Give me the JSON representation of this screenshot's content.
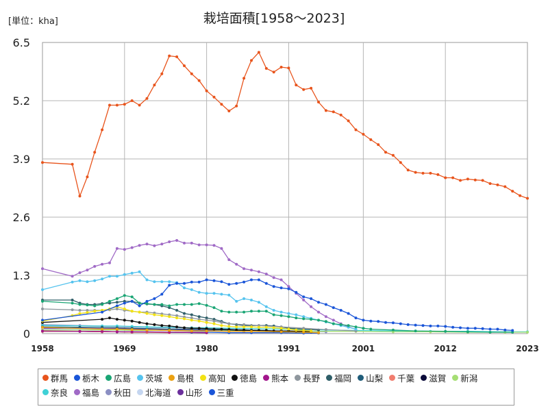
{
  "header": {
    "unit": "[単位：kha]",
    "title": "栽培面積[1958～2023]"
  },
  "chart_data": {
    "type": "line",
    "title": "栽培面積[1958～2023]",
    "unit": "[単位：kha]",
    "xlim": [
      1958,
      2023
    ],
    "ylim": [
      0,
      6.5
    ],
    "x_ticks": [
      1958,
      1969,
      1980,
      1991,
      2001,
      2012,
      2023
    ],
    "y_ticks": [
      0,
      1.3,
      2.6,
      3.9,
      5.2,
      6.5
    ],
    "y_tick_labels": [
      "0",
      "1.3",
      "2.6",
      "3.9",
      "5.2",
      "6.5"
    ],
    "grid": true,
    "legend_position": "bottom",
    "series": [
      {
        "name": "群馬",
        "color": "#e8541c",
        "x": [
          1958,
          1962,
          1963,
          1964,
          1965,
          1966,
          1967,
          1968,
          1969,
          1970,
          1971,
          1972,
          1973,
          1974,
          1975,
          1976,
          1977,
          1978,
          1979,
          1980,
          1981,
          1982,
          1983,
          1984,
          1985,
          1986,
          1987,
          1988,
          1989,
          1990,
          1991,
          1992,
          1993,
          1994,
          1995,
          1996,
          1997,
          1998,
          1999,
          2000,
          2001,
          2002,
          2003,
          2004,
          2005,
          2006,
          2007,
          2008,
          2009,
          2010,
          2011,
          2012,
          2013,
          2014,
          2015,
          2016,
          2017,
          2018,
          2019,
          2020,
          2021,
          2022,
          2023
        ],
        "y": [
          3.82,
          3.78,
          3.07,
          3.5,
          4.05,
          4.55,
          5.1,
          5.1,
          5.12,
          5.2,
          5.1,
          5.25,
          5.55,
          5.8,
          6.2,
          6.18,
          5.98,
          5.8,
          5.65,
          5.42,
          5.28,
          5.12,
          4.97,
          5.08,
          5.7,
          6.1,
          6.28,
          5.92,
          5.84,
          5.95,
          5.93,
          5.55,
          5.45,
          5.48,
          5.17,
          4.98,
          4.95,
          4.88,
          4.75,
          4.55,
          4.45,
          4.33,
          4.22,
          4.05,
          3.98,
          3.82,
          3.65,
          3.6,
          3.58,
          3.58,
          3.55,
          3.48,
          3.48,
          3.42,
          3.45,
          3.43,
          3.42,
          3.35,
          3.32,
          3.28,
          3.18,
          3.08,
          3.02
        ]
      },
      {
        "name": "栃木",
        "color": "#1a55d8",
        "x": [
          1958,
          1966,
          1968,
          1969,
          1970,
          1971,
          1972,
          1973,
          1974,
          1975,
          1976,
          1977,
          1978,
          1979,
          1980,
          1981,
          1982,
          1983,
          1984,
          1985,
          1986,
          1987,
          1988,
          1989,
          1990,
          1991,
          1992,
          1993,
          1994,
          1995,
          1996,
          1997,
          1998,
          1999,
          2000,
          2001,
          2002,
          2003,
          2004,
          2005,
          2006,
          2007,
          2008,
          2009,
          2010,
          2011,
          2012,
          2013,
          2014,
          2015,
          2016,
          2017,
          2018,
          2019,
          2020,
          2021
        ],
        "y": [
          0.3,
          0.48,
          0.62,
          0.68,
          0.72,
          0.62,
          0.72,
          0.78,
          0.88,
          1.08,
          1.12,
          1.12,
          1.15,
          1.15,
          1.2,
          1.18,
          1.16,
          1.1,
          1.12,
          1.15,
          1.2,
          1.2,
          1.12,
          1.05,
          1.02,
          1.0,
          0.92,
          0.82,
          0.78,
          0.7,
          0.65,
          0.58,
          0.52,
          0.45,
          0.35,
          0.3,
          0.28,
          0.27,
          0.25,
          0.24,
          0.22,
          0.2,
          0.19,
          0.18,
          0.17,
          0.17,
          0.16,
          0.14,
          0.13,
          0.12,
          0.12,
          0.11,
          0.1,
          0.1,
          0.08,
          0.07
        ]
      },
      {
        "name": "広島",
        "color": "#1aa574",
        "x": [
          1958,
          1962,
          1963,
          1964,
          1965,
          1966,
          1967,
          1968,
          1969,
          1970,
          1971,
          1972,
          1973,
          1974,
          1975,
          1976,
          1977,
          1978,
          1979,
          1980,
          1981,
          1982,
          1983,
          1984,
          1985,
          1986,
          1987,
          1988,
          1989,
          1990,
          1991,
          1992,
          1993,
          1994,
          1995,
          1996,
          1997,
          1998,
          1999,
          2000,
          2001,
          2002,
          2005,
          2008,
          2012,
          2015,
          2018,
          2021
        ],
        "y": [
          0.72,
          0.68,
          0.65,
          0.64,
          0.62,
          0.65,
          0.72,
          0.78,
          0.85,
          0.82,
          0.68,
          0.67,
          0.65,
          0.65,
          0.62,
          0.65,
          0.65,
          0.65,
          0.67,
          0.63,
          0.58,
          0.5,
          0.48,
          0.48,
          0.48,
          0.5,
          0.5,
          0.5,
          0.42,
          0.4,
          0.38,
          0.35,
          0.33,
          0.32,
          0.3,
          0.27,
          0.22,
          0.2,
          0.18,
          0.15,
          0.12,
          0.1,
          0.08,
          0.06,
          0.05,
          0.04,
          0.03,
          0.03
        ]
      },
      {
        "name": "茨城",
        "color": "#55c3ee",
        "x": [
          1958,
          1962,
          1963,
          1964,
          1965,
          1966,
          1967,
          1968,
          1969,
          1970,
          1971,
          1972,
          1973,
          1974,
          1975,
          1976,
          1977,
          1978,
          1979,
          1980,
          1981,
          1982,
          1983,
          1984,
          1985,
          1986,
          1987,
          1988,
          1989,
          1990,
          1991,
          1992,
          1993,
          1994,
          1995,
          1996,
          1997,
          1998,
          1999,
          2000
        ],
        "y": [
          0.98,
          1.15,
          1.18,
          1.16,
          1.18,
          1.22,
          1.28,
          1.28,
          1.32,
          1.35,
          1.38,
          1.2,
          1.16,
          1.16,
          1.16,
          1.14,
          1.02,
          0.98,
          0.92,
          0.9,
          0.9,
          0.88,
          0.86,
          0.72,
          0.78,
          0.75,
          0.7,
          0.6,
          0.52,
          0.48,
          0.45,
          0.42,
          0.38,
          0.34,
          0.3,
          0.26,
          0.22,
          0.18,
          0.14,
          0.1
        ]
      },
      {
        "name": "島根",
        "color": "#eba112",
        "x": [
          1958,
          1966,
          1968,
          1970,
          1972,
          1975,
          1978,
          1980,
          1983,
          1986,
          1990,
          1993,
          1995
        ],
        "y": [
          0.14,
          0.1,
          0.1,
          0.09,
          0.08,
          0.07,
          0.06,
          0.06,
          0.05,
          0.05,
          0.04,
          0.03,
          0.02
        ]
      },
      {
        "name": "高知",
        "color": "#f2e214",
        "x": [
          1958,
          1962,
          1963,
          1964,
          1965,
          1966,
          1967,
          1968,
          1969,
          1970,
          1971,
          1972,
          1973,
          1974,
          1975,
          1976,
          1977,
          1978,
          1979,
          1980,
          1981,
          1982,
          1983,
          1984,
          1985,
          1986,
          1987,
          1988,
          1989,
          1990,
          1991,
          1992,
          1993,
          1994
        ],
        "y": [
          0.28,
          0.4,
          0.45,
          0.47,
          0.5,
          0.52,
          0.55,
          0.6,
          0.55,
          0.5,
          0.48,
          0.45,
          0.42,
          0.4,
          0.38,
          0.35,
          0.33,
          0.3,
          0.28,
          0.25,
          0.22,
          0.18,
          0.16,
          0.15,
          0.15,
          0.15,
          0.14,
          0.14,
          0.13,
          0.12,
          0.1,
          0.08,
          0.07,
          0.06
        ]
      },
      {
        "name": "徳島",
        "color": "#111111",
        "x": [
          1958,
          1966,
          1967,
          1968,
          1969,
          1970,
          1971,
          1972,
          1973,
          1974,
          1975,
          1976,
          1977,
          1978,
          1979,
          1980,
          1981,
          1982,
          1983,
          1984,
          1985,
          1986,
          1987,
          1988,
          1989,
          1990,
          1991,
          1992,
          1993,
          1994
        ],
        "y": [
          0.25,
          0.32,
          0.35,
          0.32,
          0.3,
          0.28,
          0.25,
          0.22,
          0.2,
          0.18,
          0.17,
          0.15,
          0.13,
          0.12,
          0.12,
          0.11,
          0.1,
          0.1,
          0.09,
          0.08,
          0.08,
          0.07,
          0.07,
          0.07,
          0.06,
          0.06,
          0.06,
          0.05,
          0.05,
          0.04
        ]
      },
      {
        "name": "熊本",
        "color": "#a2168c",
        "x": [
          1958,
          1963,
          1966,
          1968,
          1970,
          1975,
          1980
        ],
        "y": [
          0.06,
          0.05,
          0.05,
          0.04,
          0.04,
          0.03,
          0.02
        ]
      },
      {
        "name": "長野",
        "color": "#8f979e",
        "x": [
          1958,
          1962,
          1963,
          1964,
          1965,
          1966,
          1967,
          1968,
          1969,
          1970,
          1971,
          1972,
          1973,
          1974,
          1975,
          1976,
          1977,
          1978,
          1979,
          1980,
          1981,
          1982,
          1983,
          1985,
          1987,
          1990,
          1993,
          1996,
          2000
        ],
        "y": [
          0.55,
          0.53,
          0.52,
          0.52,
          0.52,
          0.52,
          0.53,
          0.55,
          0.52,
          0.5,
          0.48,
          0.48,
          0.46,
          0.44,
          0.42,
          0.4,
          0.37,
          0.35,
          0.32,
          0.3,
          0.28,
          0.25,
          0.22,
          0.2,
          0.18,
          0.15,
          0.12,
          0.09,
          0.06
        ]
      },
      {
        "name": "福岡",
        "color": "#2f5e68",
        "x": [
          1958,
          1962,
          1963,
          1964,
          1965,
          1966,
          1967,
          1968,
          1969,
          1970,
          1971,
          1972,
          1973,
          1974,
          1975,
          1976,
          1977,
          1978,
          1979,
          1980,
          1981,
          1982,
          1983,
          1984,
          1985,
          1986,
          1987,
          1988,
          1989,
          1990,
          1991,
          1993,
          1995
        ],
        "y": [
          0.75,
          0.75,
          0.68,
          0.65,
          0.65,
          0.67,
          0.68,
          0.7,
          0.72,
          0.72,
          0.68,
          0.66,
          0.65,
          0.62,
          0.58,
          0.52,
          0.45,
          0.42,
          0.38,
          0.35,
          0.32,
          0.27,
          0.22,
          0.2,
          0.18,
          0.18,
          0.18,
          0.18,
          0.17,
          0.15,
          0.12,
          0.1,
          0.08
        ]
      },
      {
        "name": "山梨",
        "color": "#205d7a",
        "x": [
          1958,
          1963,
          1966,
          1968,
          1970,
          1975,
          1980,
          1985,
          1990
        ],
        "y": [
          0.15,
          0.14,
          0.14,
          0.13,
          0.12,
          0.1,
          0.09,
          0.07,
          0.05
        ]
      },
      {
        "name": "千葉",
        "color": "#f17d6f",
        "x": [
          1958,
          1963,
          1966,
          1968,
          1970,
          1972,
          1975
        ],
        "y": [
          0.05,
          0.05,
          0.04,
          0.04,
          0.03,
          0.03,
          0.02
        ]
      },
      {
        "name": "滋賀",
        "color": "#0b0b3a",
        "x": [
          1958,
          1963,
          1966,
          1968,
          1970,
          1975,
          1980
        ],
        "y": [
          0.05,
          0.05,
          0.04,
          0.04,
          0.03,
          0.03,
          0.02
        ]
      },
      {
        "name": "新潟",
        "color": "#a6de74",
        "x": [
          1958,
          1966,
          1968,
          1970,
          1975,
          1980,
          1985,
          1990,
          1995,
          2000,
          2005,
          2010,
          2015,
          2020,
          2023
        ],
        "y": [
          0.08,
          0.08,
          0.08,
          0.07,
          0.07,
          0.06,
          0.06,
          0.05,
          0.05,
          0.05,
          0.04,
          0.04,
          0.03,
          0.03,
          0.03
        ]
      },
      {
        "name": "奈良",
        "color": "#3fd1d6",
        "x": [
          1958,
          1966,
          1968,
          1970,
          1972,
          1975,
          1978,
          1980,
          1983,
          1986,
          1990,
          1993,
          1996,
          2000,
          2005,
          2010,
          2015,
          2020,
          2023
        ],
        "y": [
          0.18,
          0.17,
          0.17,
          0.16,
          0.15,
          0.14,
          0.13,
          0.13,
          0.12,
          0.11,
          0.1,
          0.09,
          0.08,
          0.07,
          0.06,
          0.05,
          0.05,
          0.04,
          0.04
        ]
      },
      {
        "name": "福島",
        "color": "#a06ac6",
        "x": [
          1958,
          1962,
          1963,
          1964,
          1965,
          1966,
          1967,
          1968,
          1969,
          1970,
          1971,
          1972,
          1973,
          1974,
          1975,
          1976,
          1977,
          1978,
          1979,
          1980,
          1981,
          1982,
          1983,
          1984,
          1985,
          1986,
          1987,
          1988,
          1989,
          1990,
          1991,
          1992,
          1993,
          1994,
          1995,
          1996,
          1997,
          1998,
          1999,
          2000
        ],
        "y": [
          1.45,
          1.28,
          1.36,
          1.42,
          1.5,
          1.55,
          1.58,
          1.9,
          1.88,
          1.92,
          1.97,
          2.0,
          1.96,
          2.0,
          2.05,
          2.08,
          2.02,
          2.02,
          1.98,
          1.98,
          1.97,
          1.9,
          1.65,
          1.55,
          1.45,
          1.42,
          1.38,
          1.33,
          1.25,
          1.2,
          1.05,
          0.9,
          0.75,
          0.6,
          0.48,
          0.38,
          0.3,
          0.22,
          0.15,
          0.1
        ]
      },
      {
        "name": "秋田",
        "color": "#8b8fc3",
        "x": [
          1958,
          1963,
          1966,
          1968,
          1970,
          1972,
          1975,
          1978,
          1980,
          1983,
          1986,
          1990,
          1993,
          1996
        ],
        "y": [
          0.2,
          0.18,
          0.17,
          0.16,
          0.15,
          0.14,
          0.13,
          0.12,
          0.11,
          0.1,
          0.08,
          0.06,
          0.05,
          0.04
        ]
      },
      {
        "name": "北海道",
        "color": "#c5d6f0",
        "x": [
          1958,
          1963,
          1966,
          1968,
          1970,
          1972,
          1975,
          1978,
          1980
        ],
        "y": [
          0.1,
          0.1,
          0.09,
          0.09,
          0.08,
          0.08,
          0.07,
          0.06,
          0.05
        ]
      },
      {
        "name": "山形",
        "color": "#6b2f9c",
        "x": [
          1958,
          1963,
          1966,
          1968,
          1970,
          1972,
          1975,
          1978,
          1980,
          1985
        ],
        "y": [
          0.12,
          0.12,
          0.11,
          0.11,
          0.1,
          0.1,
          0.09,
          0.08,
          0.07,
          0.05
        ]
      },
      {
        "name": "三重",
        "color": "#1a55d8",
        "x": [
          1958,
          1963,
          1966,
          1968,
          1970,
          1972,
          1975,
          1978,
          1980,
          1983,
          1986,
          1990,
          1993,
          1995
        ],
        "y": [
          0.05,
          0.05,
          0.05,
          0.04,
          0.04,
          0.04,
          0.03,
          0.03,
          0.03,
          0.02,
          0.02,
          0.02,
          0.01,
          0.01
        ]
      }
    ],
    "legend_rows": [
      [
        "群馬",
        "栃木",
        "広島",
        "茨城",
        "島根",
        "高知",
        "徳島",
        "熊本",
        "長野",
        "福岡",
        "山梨",
        "千葉",
        "滋賀",
        "新潟"
      ],
      [
        "奈良",
        "福島",
        "秋田",
        "北海道",
        "山形",
        "三重"
      ]
    ]
  }
}
